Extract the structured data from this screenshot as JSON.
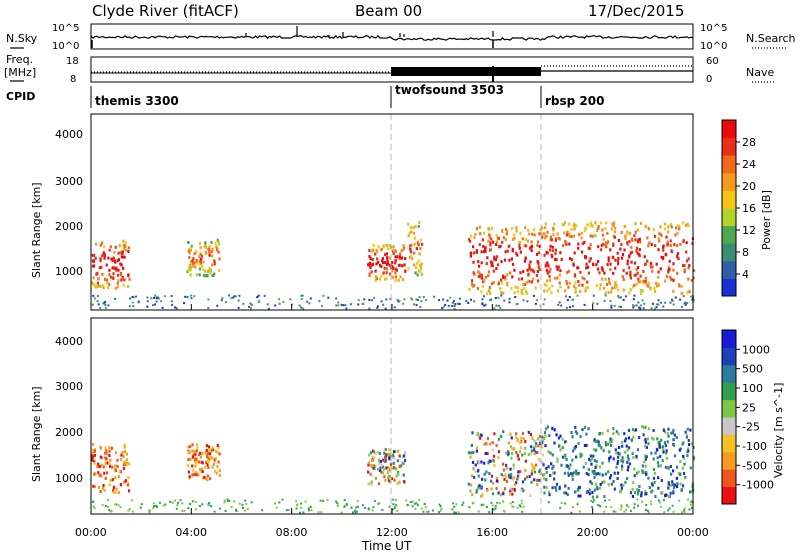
{
  "header": {
    "station": "Clyde River (fitACF)",
    "beam": "Beam 00",
    "date": "17/Dec/2015"
  },
  "strip_nsky": {
    "left_label": "N.Sky",
    "right_label": "N.Search",
    "left_ticks": [
      "10^5",
      "10^0"
    ],
    "right_ticks": [
      "10^5",
      "10^0"
    ]
  },
  "strip_freq": {
    "left_label": "Freq.",
    "left_unit": "[MHz]",
    "right_label": "Nave",
    "left_ticks": [
      "18",
      "8"
    ],
    "right_ticks": [
      "60",
      "0"
    ]
  },
  "cpid": {
    "label": "CPID",
    "segments": [
      {
        "name": "themis 3300",
        "start": 0,
        "end": 12
      },
      {
        "name": "twofsound 3503",
        "start": 12,
        "end": 18
      },
      {
        "name": "rbsp 200",
        "start": 18,
        "end": 24
      }
    ]
  },
  "x_axis": {
    "label": "Time UT",
    "ticks": [
      "00:00",
      "04:00",
      "08:00",
      "12:00",
      "16:00",
      "20:00",
      "00:00"
    ]
  },
  "colors": {
    "power": [
      "#1a2fd6",
      "#2f5fa8",
      "#3a8c72",
      "#4fa84f",
      "#b5d22a",
      "#f5c518",
      "#f59a1c",
      "#f06a1a",
      "#e83018",
      "#e80c0c"
    ],
    "velocity": [
      "#e81010",
      "#f0561a",
      "#f59a22",
      "#f5c224",
      "#c8c8c8",
      "#7cc843",
      "#2e9e52",
      "#2e7a9e",
      "#1f3fb8",
      "#1a1ad4"
    ]
  },
  "chart_data": [
    {
      "type": "heatmap",
      "title": "",
      "xlabel": "",
      "ylabel": "Slant Range [km]",
      "xlim": [
        0,
        24
      ],
      "ylim": [
        200,
        4600
      ],
      "y_ticks": [
        "1000",
        "2000",
        "3000",
        "4000"
      ],
      "colorbar": {
        "label": "Power [dB]",
        "ticks": [
          "4",
          "8",
          "12",
          "16",
          "20",
          "24",
          "28"
        ],
        "range": [
          0,
          30
        ]
      },
      "echo_regions": [
        {
          "t0": 0.0,
          "t1": 1.5,
          "r0": 700,
          "r1": 1800,
          "level": "strong"
        },
        {
          "t0": 3.8,
          "t1": 5.1,
          "r0": 1000,
          "r1": 1800,
          "level": "medium"
        },
        {
          "t0": 11.0,
          "t1": 12.5,
          "r0": 900,
          "r1": 1700,
          "level": "strong"
        },
        {
          "t0": 12.6,
          "t1": 13.2,
          "r0": 1000,
          "r1": 2200,
          "level": "medium"
        },
        {
          "t0": 15.0,
          "t1": 18.0,
          "r0": 600,
          "r1": 2100,
          "level": "strong"
        },
        {
          "t0": 18.0,
          "t1": 24.0,
          "r0": 600,
          "r1": 2200,
          "level": "strong"
        }
      ]
    },
    {
      "type": "heatmap",
      "title": "",
      "xlabel": "Time UT",
      "ylabel": "Slant Range [km]",
      "xlim": [
        0,
        24
      ],
      "ylim": [
        200,
        4600
      ],
      "y_ticks": [
        "1000",
        "2000",
        "3000",
        "4000"
      ],
      "colorbar": {
        "label": "Velocity [m s^-1]",
        "ticks": [
          "-1000",
          "-500",
          "-100",
          "-25",
          "25",
          "100",
          "500",
          "1000"
        ],
        "range": [
          -1000,
          1000
        ]
      },
      "echo_regions": [
        {
          "t0": 0.0,
          "t1": 1.5,
          "r0": 700,
          "r1": 1800,
          "level": "negative"
        },
        {
          "t0": 3.8,
          "t1": 5.1,
          "r0": 1000,
          "r1": 1800,
          "level": "negative"
        },
        {
          "t0": 11.0,
          "t1": 12.5,
          "r0": 900,
          "r1": 1700,
          "level": "mixed"
        },
        {
          "t0": 15.0,
          "t1": 18.0,
          "r0": 600,
          "r1": 2100,
          "level": "mixed"
        },
        {
          "t0": 18.0,
          "t1": 24.0,
          "r0": 600,
          "r1": 2200,
          "level": "positive"
        }
      ]
    }
  ]
}
